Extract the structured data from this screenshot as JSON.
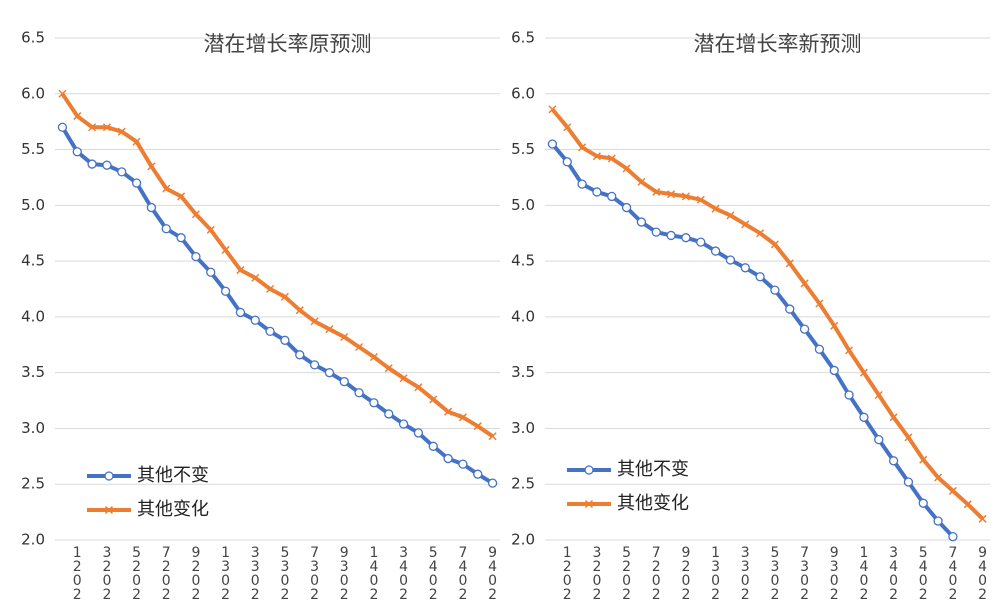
{
  "chart_data": [
    {
      "type": "line",
      "title": "潜在增长率原预测",
      "categories": [
        null,
        "2021",
        null,
        "2023",
        null,
        "2025",
        null,
        "2027",
        null,
        "2029",
        null,
        "2031",
        null,
        "2033",
        null,
        "2035",
        null,
        "2037",
        null,
        "2039",
        null,
        "2041",
        null,
        "2043",
        null,
        "2045",
        null,
        "2047",
        null,
        "2049"
      ],
      "series": [
        {
          "name": "其他不变",
          "color": "#4472c4",
          "marker": "circle",
          "values": [
            5.7,
            5.48,
            5.37,
            5.36,
            5.3,
            5.2,
            4.98,
            4.79,
            4.71,
            4.54,
            4.4,
            4.23,
            4.04,
            3.97,
            3.87,
            3.79,
            3.66,
            3.57,
            3.5,
            3.42,
            3.32,
            3.23,
            3.13,
            3.04,
            2.96,
            2.84,
            2.73,
            2.68,
            2.59,
            2.51
          ]
        },
        {
          "name": "其他变化",
          "color": "#ed7d31",
          "marker": "x",
          "values": [
            6.0,
            5.8,
            5.7,
            5.7,
            5.66,
            5.57,
            5.35,
            5.15,
            5.08,
            4.92,
            4.78,
            4.6,
            4.42,
            4.35,
            4.25,
            4.18,
            4.06,
            3.96,
            3.89,
            3.82,
            3.73,
            3.64,
            3.54,
            3.45,
            3.37,
            3.26,
            3.15,
            3.1,
            3.02,
            2.93
          ]
        }
      ],
      "ylim": [
        2.0,
        6.5
      ],
      "yticks": [
        {
          "value": 2,
          "label": "2.0"
        },
        2.5,
        {
          "value": 3,
          "label": "3.0"
        },
        3.5,
        {
          "value": 4,
          "label": "4.0"
        },
        4.5,
        {
          "value": 5,
          "label": "5.0"
        },
        5.5,
        {
          "value": 6,
          "label": "6.0"
        },
        6.5
      ],
      "grid": true,
      "legend": "lower left"
    },
    {
      "type": "line",
      "title": "潜在增长率新预测",
      "categories": [
        null,
        "2021",
        null,
        "2023",
        null,
        "2025",
        null,
        "2027",
        null,
        "2029",
        null,
        "2031",
        null,
        "2033",
        null,
        "2035",
        null,
        "2037",
        null,
        "2039",
        null,
        "2041",
        null,
        "2043",
        null,
        "2045",
        null,
        "2047",
        null,
        "2049"
      ],
      "series": [
        {
          "name": "其他不变",
          "color": "#4472c4",
          "marker": "circle",
          "values": [
            5.55,
            5.39,
            5.19,
            5.12,
            5.08,
            4.98,
            4.85,
            4.76,
            4.73,
            4.71,
            4.67,
            4.59,
            4.51,
            4.44,
            4.36,
            4.24,
            4.07,
            3.89,
            3.71,
            3.52,
            3.3,
            3.1,
            2.9,
            2.71,
            2.52,
            2.33,
            2.17,
            2.03,
            null,
            null
          ]
        },
        {
          "name": "其他变化",
          "color": "#ed7d31",
          "marker": "x",
          "values": [
            5.86,
            5.7,
            5.52,
            5.44,
            5.42,
            5.33,
            5.21,
            5.12,
            5.1,
            5.08,
            5.05,
            4.97,
            4.91,
            4.83,
            4.75,
            4.65,
            4.48,
            4.3,
            4.12,
            3.92,
            3.7,
            3.5,
            3.3,
            3.1,
            2.92,
            2.72,
            2.56,
            2.44,
            2.32,
            2.19
          ]
        }
      ],
      "ylim": [
        2.0,
        6.5
      ],
      "yticks": [
        {
          "value": 2,
          "label": "2.0"
        },
        2.5,
        {
          "value": 3,
          "label": "3.0"
        },
        3.5,
        {
          "value": 4,
          "label": "4.0"
        },
        4.5,
        {
          "value": 5,
          "label": "5.0"
        },
        5.5,
        {
          "value": 6,
          "label": "6.0"
        },
        6.5
      ],
      "grid": true,
      "legend": "lower left"
    }
  ]
}
